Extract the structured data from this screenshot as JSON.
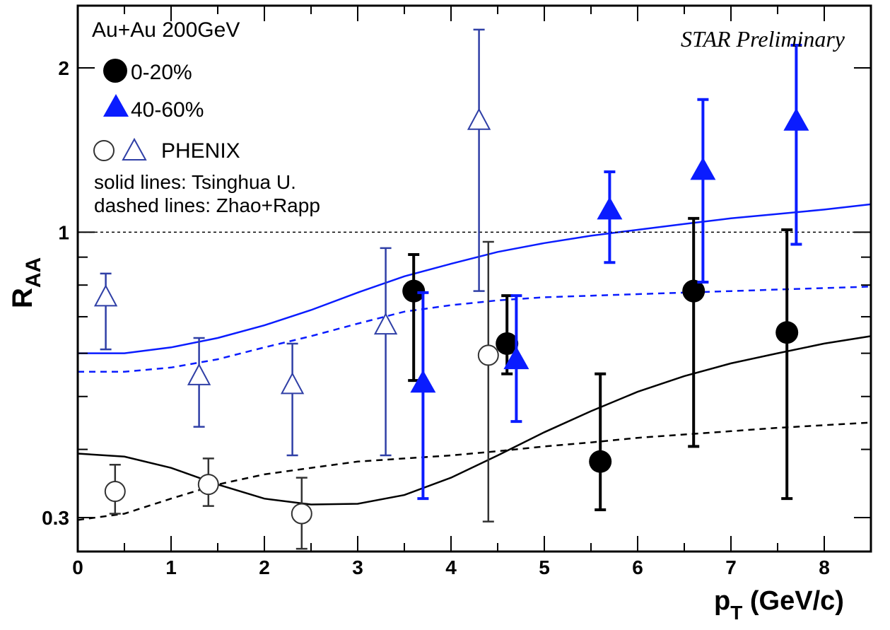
{
  "chart_data": {
    "type": "scatter",
    "title": "",
    "collision_label": "Au+Au 200GeV",
    "watermark": "STAR Preliminary",
    "xlabel": "p",
    "xlabel_sub": "T",
    "xlabel_unit": " (GeV/c)",
    "ylabel": "R",
    "ylabel_sub": "AA",
    "xlim": [
      0,
      8.5
    ],
    "ylim": [
      0.26,
      2.6
    ],
    "yscale": "log",
    "reference_line": 1.0,
    "x_ticks": [
      0,
      1,
      2,
      3,
      4,
      5,
      6,
      7,
      8
    ],
    "x_tick_labels": [
      "0",
      "1",
      "2",
      "3",
      "4",
      "5",
      "6",
      "7",
      "8"
    ],
    "y_ticks_labeled": [
      0.3,
      1,
      2
    ],
    "y_tick_labels": [
      "0.3",
      "1",
      "2"
    ],
    "y_ticks_minor": [
      0.4,
      0.5,
      0.6,
      0.7,
      0.8,
      0.9
    ],
    "legend": {
      "star_central": "0-20%",
      "star_peripheral": "40-60%",
      "phenix": "PHENIX",
      "note_solid": "solid lines: Tsinghua U.",
      "note_dashed": "dashed lines: Zhao+Rapp"
    },
    "colors": {
      "black": "#000000",
      "blue": "#0a1cff",
      "phenix_blue": "#2f3fa6",
      "dark": "#333333",
      "frame": "#000000"
    },
    "series": [
      {
        "name": "0-20%",
        "marker": "filled-circle",
        "color": "#000000",
        "points": [
          {
            "x": 3.6,
            "y": 0.78,
            "lo": 0.535,
            "hi": 0.91
          },
          {
            "x": 4.6,
            "y": 0.625,
            "lo": 0.55,
            "hi": 0.765
          },
          {
            "x": 5.6,
            "y": 0.38,
            "lo": 0.31,
            "hi": 0.55
          },
          {
            "x": 6.6,
            "y": 0.78,
            "lo": 0.405,
            "hi": 1.06
          },
          {
            "x": 7.6,
            "y": 0.655,
            "lo": 0.325,
            "hi": 1.01
          }
        ]
      },
      {
        "name": "40-60%",
        "marker": "filled-triangle",
        "color": "#0a1cff",
        "points": [
          {
            "x": 3.7,
            "y": 0.53,
            "lo": 0.325,
            "hi": 0.775
          },
          {
            "x": 4.7,
            "y": 0.585,
            "lo": 0.45,
            "hi": 0.765
          },
          {
            "x": 5.7,
            "y": 1.1,
            "lo": 0.88,
            "hi": 1.29
          },
          {
            "x": 6.7,
            "y": 1.3,
            "lo": 0.81,
            "hi": 1.75
          },
          {
            "x": 7.7,
            "y": 1.6,
            "lo": 0.95,
            "hi": 2.2
          }
        ]
      },
      {
        "name": "PHENIX 0-20%",
        "marker": "open-circle",
        "color": "#333333",
        "points": [
          {
            "x": 0.4,
            "y": 0.335,
            "lo": 0.305,
            "hi": 0.375
          },
          {
            "x": 1.4,
            "y": 0.345,
            "lo": 0.315,
            "hi": 0.385
          },
          {
            "x": 2.4,
            "y": 0.305,
            "lo": 0.263,
            "hi": 0.355
          },
          {
            "x": 4.4,
            "y": 0.595,
            "lo": 0.295,
            "hi": 0.96
          }
        ]
      },
      {
        "name": "PHENIX 40-60%",
        "marker": "open-triangle",
        "color": "#2f3fa6",
        "points": [
          {
            "x": 0.3,
            "y": 0.76,
            "lo": 0.61,
            "hi": 0.84
          },
          {
            "x": 1.3,
            "y": 0.545,
            "lo": 0.44,
            "hi": 0.64
          },
          {
            "x": 2.3,
            "y": 0.525,
            "lo": 0.39,
            "hi": 0.625
          },
          {
            "x": 3.3,
            "y": 0.675,
            "lo": 0.39,
            "hi": 0.935
          },
          {
            "x": 4.3,
            "y": 1.6,
            "lo": 0.78,
            "hi": 2.35
          }
        ]
      }
    ],
    "curves": [
      {
        "name": "Tsinghua U. 40-60%",
        "style": "solid",
        "color": "#0a1cff",
        "x": [
          0,
          0.5,
          1,
          1.5,
          2,
          2.5,
          3,
          3.5,
          4,
          4.5,
          5,
          5.5,
          6,
          6.5,
          7,
          7.5,
          8,
          8.5
        ],
        "y": [
          0.6,
          0.6,
          0.615,
          0.64,
          0.675,
          0.72,
          0.775,
          0.83,
          0.875,
          0.92,
          0.955,
          0.985,
          1.01,
          1.035,
          1.06,
          1.08,
          1.1,
          1.125
        ]
      },
      {
        "name": "Zhao+Rapp 40-60%",
        "style": "dashed",
        "color": "#0a1cff",
        "x": [
          0,
          0.5,
          1,
          1.5,
          2,
          2.5,
          3,
          3.5,
          4,
          4.5,
          5,
          5.5,
          6,
          6.5,
          7,
          7.5,
          8,
          8.5
        ],
        "y": [
          0.555,
          0.555,
          0.565,
          0.585,
          0.615,
          0.645,
          0.68,
          0.715,
          0.735,
          0.75,
          0.76,
          0.765,
          0.77,
          0.775,
          0.78,
          0.785,
          0.79,
          0.795
        ]
      },
      {
        "name": "Tsinghua U. 0-20%",
        "style": "solid",
        "color": "#000000",
        "x": [
          0,
          0.5,
          1,
          1.5,
          2,
          2.5,
          3,
          3.5,
          4,
          4.5,
          5,
          5.5,
          6,
          6.5,
          7,
          7.5,
          8,
          8.5
        ],
        "y": [
          0.393,
          0.388,
          0.37,
          0.345,
          0.325,
          0.317,
          0.318,
          0.33,
          0.355,
          0.39,
          0.43,
          0.47,
          0.51,
          0.545,
          0.575,
          0.6,
          0.625,
          0.645
        ]
      },
      {
        "name": "Zhao+Rapp 0-20%",
        "style": "dashed",
        "color": "#000000",
        "x": [
          0,
          0.5,
          1,
          1.5,
          2,
          2.5,
          3,
          3.5,
          4,
          4.5,
          5,
          5.5,
          6,
          6.5,
          7,
          7.5,
          8,
          8.5
        ],
        "y": [
          0.297,
          0.305,
          0.325,
          0.345,
          0.36,
          0.37,
          0.38,
          0.385,
          0.39,
          0.397,
          0.405,
          0.412,
          0.42,
          0.426,
          0.432,
          0.438,
          0.443,
          0.448
        ]
      }
    ]
  }
}
